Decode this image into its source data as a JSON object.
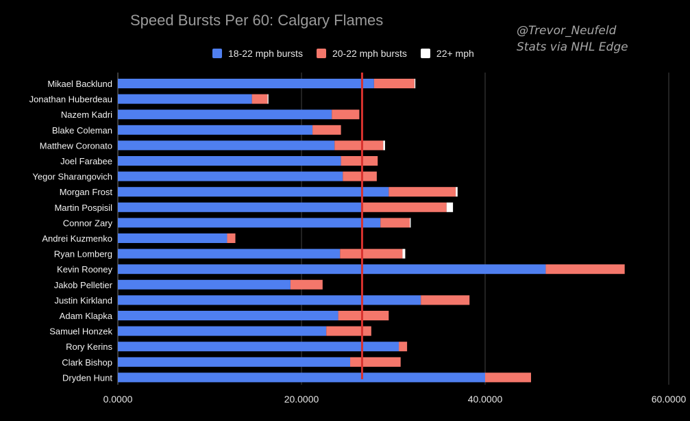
{
  "title": "Speed Bursts Per 60: Calgary Flames",
  "credit": {
    "line1": "@Trevor_Neufeld",
    "line2": "Stats via NHL Edge"
  },
  "colors": {
    "s1": "#4f7ff0",
    "s2": "#f4776b",
    "s3": "#ffffff",
    "ref_line": "#d9322e",
    "grid": "#444444"
  },
  "chart_data": {
    "type": "bar",
    "orientation": "horizontal",
    "stacked": true,
    "categories": [
      "Mikael Backlund",
      "Jonathan Huberdeau",
      "Nazem Kadri",
      "Blake Coleman",
      "Matthew Coronato",
      "Joel Farabee",
      "Yegor Sharangovich",
      "Morgan Frost",
      "Martin Pospisil",
      "Connor Zary",
      "Andrei Kuzmenko",
      "Ryan Lomberg",
      "Kevin Rooney",
      "Jakob Pelletier",
      "Justin Kirkland",
      "Adam Klapka",
      "Samuel Honzek",
      "Rory Kerins",
      "Clark Bishop",
      "Dryden Hunt"
    ],
    "series": [
      {
        "name": "18-22 mph bursts",
        "color": "#4f7ff0",
        "values": [
          27.9,
          14.6,
          23.3,
          21.2,
          23.6,
          24.3,
          24.5,
          29.5,
          26.6,
          28.6,
          11.9,
          24.2,
          46.6,
          18.8,
          33.0,
          24.0,
          22.7,
          30.6,
          25.3,
          40.0
        ]
      },
      {
        "name": "20-22 mph bursts",
        "color": "#f4776b",
        "values": [
          4.4,
          1.7,
          3.0,
          3.1,
          5.3,
          4.0,
          3.7,
          7.3,
          9.2,
          3.2,
          0.9,
          6.8,
          8.6,
          3.5,
          5.3,
          5.5,
          4.9,
          0.9,
          5.5,
          5.0
        ]
      },
      {
        "name": "22+ mph",
        "color": "#ffffff",
        "values": [
          0.1,
          0.1,
          0,
          0,
          0.2,
          0,
          0,
          0.2,
          0.7,
          0.1,
          0,
          0.3,
          0,
          0,
          0,
          0,
          0,
          0,
          0,
          0
        ]
      }
    ],
    "reference_line": 26.6,
    "xlim": [
      0,
      60
    ],
    "xticks": [
      "0.0000",
      "20.0000",
      "40.0000",
      "60.0000"
    ],
    "grid": true,
    "legend": "top"
  }
}
